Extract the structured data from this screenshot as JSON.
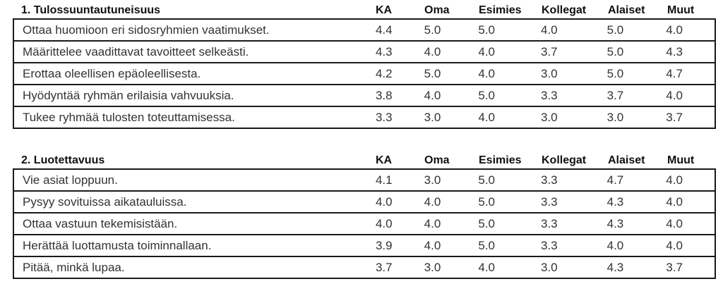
{
  "columns": [
    "KA",
    "Oma",
    "Esimies",
    "Kollegat",
    "Alaiset",
    "Muut"
  ],
  "sections": [
    {
      "title": "1. Tulossuuntautuneisuus",
      "rows": [
        {
          "label": "Ottaa huomioon eri sidosryhmien vaatimukset.",
          "values": [
            "4.4",
            "5.0",
            "5.0",
            "4.0",
            "5.0",
            "4.0"
          ]
        },
        {
          "label": "Määrittelee vaadittavat tavoitteet selkeästi.",
          "values": [
            "4.3",
            "4.0",
            "4.0",
            "3.7",
            "5.0",
            "4.3"
          ]
        },
        {
          "label": "Erottaa oleellisen epäoleellisesta.",
          "values": [
            "4.2",
            "5.0",
            "4.0",
            "3.0",
            "5.0",
            "4.7"
          ]
        },
        {
          "label": "Hyödyntää ryhmän erilaisia vahvuuksia.",
          "values": [
            "3.8",
            "4.0",
            "5.0",
            "3.3",
            "3.7",
            "4.0"
          ]
        },
        {
          "label": "Tukee ryhmää tulosten toteuttamisessa.",
          "values": [
            "3.3",
            "3.0",
            "4.0",
            "3.0",
            "3.0",
            "3.7"
          ]
        }
      ]
    },
    {
      "title": "2. Luotettavuus",
      "rows": [
        {
          "label": "Vie asiat loppuun.",
          "values": [
            "4.1",
            "3.0",
            "5.0",
            "3.3",
            "4.7",
            "4.0"
          ]
        },
        {
          "label": "Pysyy sovituissa aikatauluissa.",
          "values": [
            "4.0",
            "4.0",
            "5.0",
            "3.3",
            "4.3",
            "4.0"
          ]
        },
        {
          "label": "Ottaa vastuun tekemisistään.",
          "values": [
            "4.0",
            "4.0",
            "5.0",
            "3.3",
            "4.3",
            "4.0"
          ]
        },
        {
          "label": "Herättää luottamusta toiminnallaan.",
          "values": [
            "3.9",
            "4.0",
            "5.0",
            "3.3",
            "4.0",
            "4.0"
          ]
        },
        {
          "label": "Pitää, minkä lupaa.",
          "values": [
            "3.7",
            "3.0",
            "4.0",
            "3.0",
            "4.3",
            "3.7"
          ]
        }
      ]
    }
  ]
}
